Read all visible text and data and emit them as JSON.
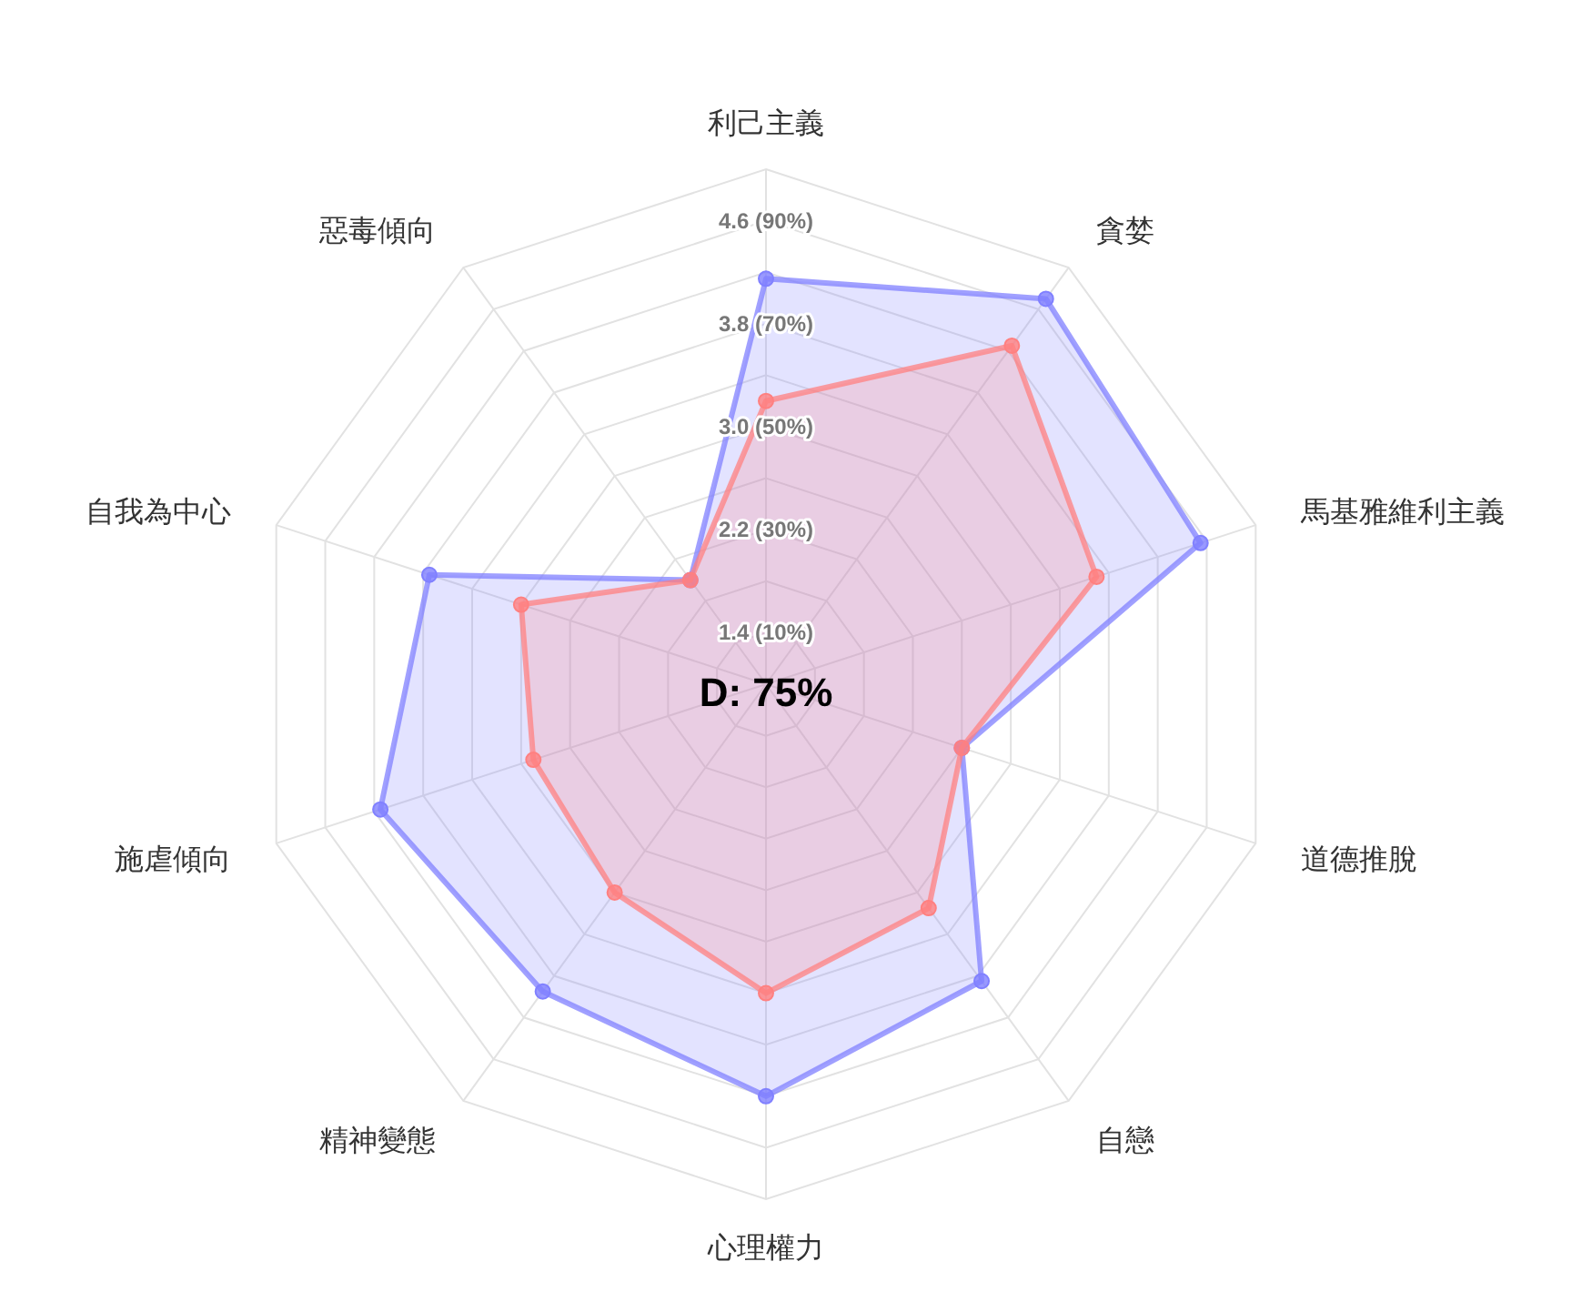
{
  "chart_data": {
    "type": "radar",
    "categories": [
      "利己主義",
      "貪婪",
      "馬基雅維利主義",
      "道德推脫",
      "自戀",
      "心理權力",
      "精神變態",
      "施虐傾向",
      "自我為中心",
      "惡毒傾向"
    ],
    "series": [
      {
        "color": "#8080ff",
        "values": [
          4.15,
          4.7,
          4.55,
          2.6,
          3.85,
          4.2,
          3.95,
          4.15,
          3.75,
          2.0
        ]
      },
      {
        "color": "#ff8080",
        "values": [
          3.2,
          4.25,
          3.7,
          2.6,
          3.15,
          3.4,
          3.0,
          2.9,
          3.0,
          2.0
        ]
      }
    ],
    "ylim": [
      1,
      5
    ],
    "yticks": [
      {
        "value": 1.4,
        "label": "1.4  (10%)"
      },
      {
        "value": 2.2,
        "label": "2.2  (30%)"
      },
      {
        "value": 3.0,
        "label": "3.0  (50%)"
      },
      {
        "value": 3.8,
        "label": "3.8  (70%)"
      },
      {
        "value": 4.6,
        "label": "4.6  (90%)"
      }
    ],
    "grid": true,
    "marker": "circle",
    "annotations": [
      "D: 75%"
    ]
  }
}
